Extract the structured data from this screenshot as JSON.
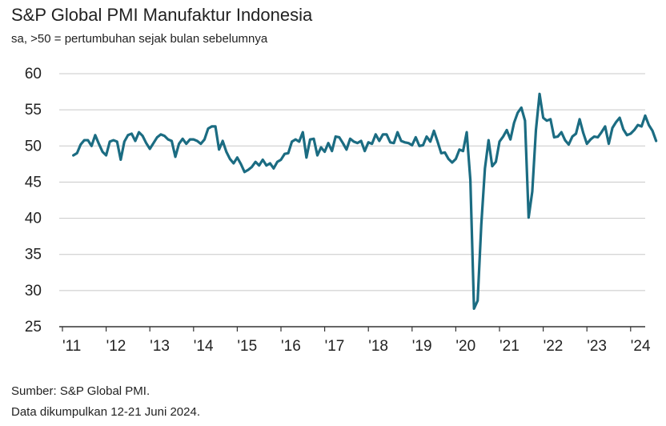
{
  "title": "S&P Global PMI Manufaktur Indonesia",
  "subtitle": "sa, >50 = pertumbuhan sejak bulan sebelumnya",
  "footer": {
    "source": "Sumber: S&P Global PMI.",
    "collected": "Data dikumpulkan 12-21 Juni 2024."
  },
  "colors": {
    "line": "#1b6c82",
    "grid": "#c8c8c8",
    "axis": "#333333"
  },
  "chart_data": {
    "type": "line",
    "title": "S&P Global PMI Manufaktur Indonesia",
    "subtitle": "sa, >50 = pertumbuhan sejak bulan sebelumnya",
    "xlabel": "",
    "ylabel": "",
    "ylim": [
      25,
      60
    ],
    "yticks": [
      25,
      30,
      35,
      40,
      45,
      50,
      55,
      60
    ],
    "xticks": [
      "'11",
      "'12",
      "'13",
      "'14",
      "'15",
      "'16",
      "'17",
      "'18",
      "'19",
      "'20",
      "'21",
      "'22",
      "'23",
      "'24"
    ],
    "grid": "horizontal",
    "start": "2011-04",
    "end": "2024-06",
    "series": [
      {
        "values": [
          48.7,
          49.0,
          50.2,
          50.8,
          50.8,
          50.0,
          51.5,
          50.3,
          49.2,
          48.7,
          50.6,
          50.8,
          50.6,
          48.1,
          50.6,
          51.5,
          51.7,
          50.7,
          51.9,
          51.4,
          50.4,
          49.6,
          50.4,
          51.2,
          51.6,
          51.4,
          50.9,
          50.7,
          48.5,
          50.3,
          51.0,
          50.3,
          50.9,
          50.9,
          50.7,
          50.3,
          50.9,
          52.4,
          52.7,
          52.7,
          49.5,
          50.7,
          49.2,
          48.2,
          47.6,
          48.4,
          47.5,
          46.4,
          46.7,
          47.1,
          47.8,
          47.3,
          48.1,
          47.3,
          47.6,
          46.9,
          47.8,
          48.1,
          48.9,
          49.0,
          50.6,
          50.9,
          50.6,
          51.9,
          48.4,
          50.9,
          51.0,
          48.7,
          49.8,
          49.2,
          50.4,
          49.3,
          51.3,
          51.2,
          50.4,
          49.5,
          51.0,
          50.6,
          50.4,
          50.7,
          49.3,
          50.5,
          50.3,
          51.6,
          50.7,
          51.6,
          51.6,
          50.5,
          50.4,
          51.9,
          50.7,
          50.5,
          50.4,
          50.1,
          51.2,
          50.0,
          50.1,
          51.3,
          50.6,
          52.1,
          50.6,
          49.0,
          49.1,
          48.2,
          47.7,
          48.2,
          49.5,
          49.3,
          51.9,
          45.3,
          27.5,
          28.6,
          39.1,
          46.9,
          50.8,
          47.2,
          47.8,
          50.6,
          51.3,
          52.2,
          50.9,
          53.2,
          54.6,
          55.3,
          53.5,
          40.1,
          43.7,
          52.2,
          57.2,
          53.9,
          53.5,
          53.7,
          51.2,
          51.3,
          51.9,
          50.8,
          50.2,
          51.3,
          51.7,
          53.7,
          51.8,
          50.3,
          50.9,
          51.3,
          51.2,
          51.9,
          52.7,
          50.3,
          52.5,
          53.3,
          53.9,
          52.3,
          51.5,
          51.7,
          52.2,
          52.9,
          52.7,
          54.2,
          52.9,
          52.1,
          50.7
        ]
      }
    ]
  }
}
